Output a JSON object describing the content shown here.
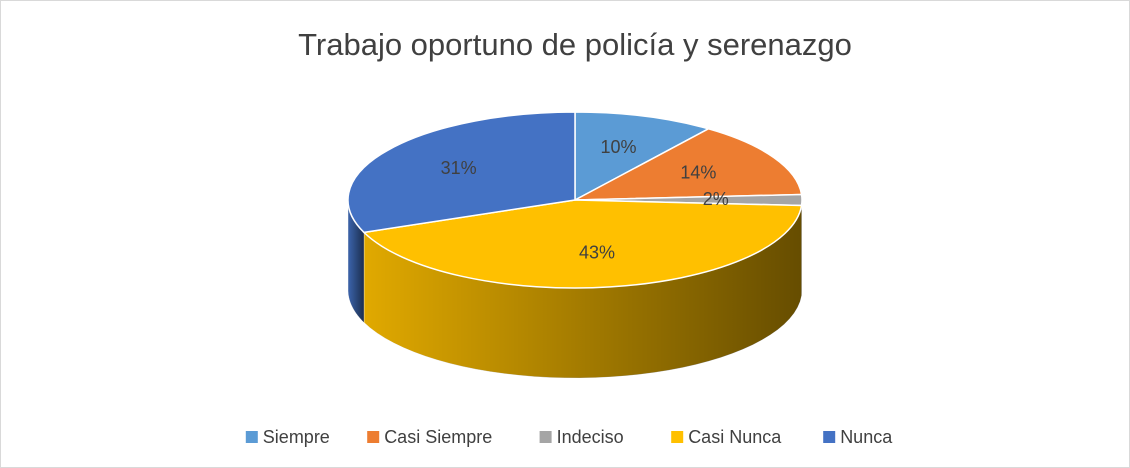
{
  "chart_data": {
    "type": "pie",
    "title": "Trabajo oportuno de policía y serenazgo",
    "categories": [
      "Siempre",
      "Casi Siempre",
      "Indeciso",
      "Casi Nunca",
      "Nunca"
    ],
    "values": [
      10,
      14,
      2,
      43,
      31
    ],
    "value_labels": [
      "10%",
      "14%",
      "2%",
      "43%",
      "31%"
    ],
    "colors": [
      "#5b9bd5",
      "#ed7d31",
      "#a5a5a5",
      "#ffc000",
      "#4472c4"
    ],
    "legend": "bottom"
  }
}
